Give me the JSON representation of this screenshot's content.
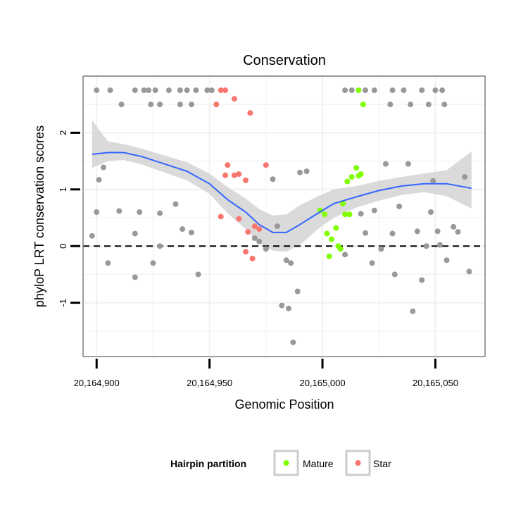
{
  "chart_data": {
    "type": "scatter",
    "title": "Conservation",
    "xlabel": "Genomic Position",
    "ylabel": "phyloP LRT conservation scores",
    "xlim": [
      20164894,
      20165072
    ],
    "ylim": [
      -1.95,
      3.0
    ],
    "x_ticks": [
      20164900,
      20164950,
      20165000,
      20165050
    ],
    "x_tick_labels": [
      "20,164,900",
      "20,164,950",
      "20,165,000",
      "20,165,050"
    ],
    "y_ticks": [
      -1,
      0,
      1,
      2
    ],
    "y_tick_labels": [
      "-1",
      "0",
      "1",
      "2"
    ],
    "reference_line": {
      "y": 0,
      "style": "dashed"
    },
    "legend": {
      "title": "Hairpin partition",
      "position": "bottom",
      "entries": [
        {
          "label": "Mature",
          "color": "#7fff00"
        },
        {
          "label": "Star",
          "color": "#f8766d"
        }
      ]
    },
    "colors": {
      "other": "#999999",
      "mature": "#7fff00",
      "star": "#f8766d",
      "smooth": "#3366ff",
      "band": "#d3d3d3"
    },
    "series": [
      {
        "name": "Other",
        "points": [
          [
            20164900,
            2.75
          ],
          [
            20164906,
            2.75
          ],
          [
            20164917,
            2.75
          ],
          [
            20164921,
            2.75
          ],
          [
            20164923,
            2.75
          ],
          [
            20164926,
            2.75
          ],
          [
            20164932,
            2.75
          ],
          [
            20164937,
            2.75
          ],
          [
            20164940,
            2.75
          ],
          [
            20164944,
            2.75
          ],
          [
            20164949,
            2.75
          ],
          [
            20164951,
            2.75
          ],
          [
            20164911,
            2.5
          ],
          [
            20164924,
            2.5
          ],
          [
            20164928,
            2.5
          ],
          [
            20164937,
            2.5
          ],
          [
            20164942,
            2.5
          ],
          [
            20164901,
            1.17
          ],
          [
            20164903,
            1.39
          ],
          [
            20164900,
            0.6
          ],
          [
            20164898,
            0.18
          ],
          [
            20164917,
            0.22
          ],
          [
            20164919,
            0.6
          ],
          [
            20164928,
            0.58
          ],
          [
            20164935,
            0.74
          ],
          [
            20164938,
            0.3
          ],
          [
            20164942,
            0.24
          ],
          [
            20164945,
            -0.5
          ],
          [
            20164928,
            0.0
          ],
          [
            20164917,
            -0.55
          ],
          [
            20164925,
            -0.3
          ],
          [
            20164905,
            -0.3
          ],
          [
            20164910,
            0.62
          ],
          [
            20164978,
            1.18
          ],
          [
            20164975,
            -0.05
          ],
          [
            20164980,
            0.35
          ],
          [
            20164984,
            -0.25
          ],
          [
            20164986,
            -0.3
          ],
          [
            20164989,
            -0.8
          ],
          [
            20164990,
            1.3
          ],
          [
            20164993,
            1.32
          ],
          [
            20164970,
            0.14
          ],
          [
            20164972,
            0.08
          ],
          [
            20164982,
            -1.05
          ],
          [
            20164985,
            -1.1
          ],
          [
            20164987,
            -1.7
          ],
          [
            20165010,
            2.75
          ],
          [
            20165013,
            2.75
          ],
          [
            20165019,
            2.75
          ],
          [
            20165023,
            2.75
          ],
          [
            20165031,
            2.75
          ],
          [
            20165036,
            2.75
          ],
          [
            20165044,
            2.75
          ],
          [
            20165050,
            2.75
          ],
          [
            20165053,
            2.75
          ],
          [
            20165030,
            2.5
          ],
          [
            20165039,
            2.5
          ],
          [
            20165047,
            2.5
          ],
          [
            20165054,
            2.5
          ],
          [
            20165010,
            -0.15
          ],
          [
            20165017,
            0.57
          ],
          [
            20165019,
            0.23
          ],
          [
            20165023,
            0.63
          ],
          [
            20165028,
            1.45
          ],
          [
            20165031,
            0.22
          ],
          [
            20165034,
            0.7
          ],
          [
            20165038,
            1.45
          ],
          [
            20165042,
            0.26
          ],
          [
            20165048,
            0.6
          ],
          [
            20165049,
            1.15
          ],
          [
            20165051,
            0.26
          ],
          [
            20165055,
            -0.25
          ],
          [
            20165058,
            0.34
          ],
          [
            20165060,
            0.25
          ],
          [
            20165063,
            1.22
          ],
          [
            20165065,
            -0.45
          ],
          [
            20165044,
            -0.6
          ],
          [
            20165040,
            -1.15
          ],
          [
            20165022,
            -0.3
          ],
          [
            20165026,
            -0.05
          ],
          [
            20165032,
            -0.5
          ],
          [
            20165046,
            0.0
          ],
          [
            20165052,
            0.02
          ]
        ]
      },
      {
        "name": "Mature",
        "points": [
          [
            20165016,
            2.75
          ],
          [
            20165018,
            2.5
          ],
          [
            20164999,
            0.63
          ],
          [
            20165001,
            0.56
          ],
          [
            20165004,
            0.12
          ],
          [
            20165006,
            0.32
          ],
          [
            20165009,
            0.75
          ],
          [
            20165012,
            0.56
          ],
          [
            20165016,
            1.24
          ],
          [
            20165013,
            1.22
          ],
          [
            20165015,
            1.38
          ],
          [
            20165003,
            -0.18
          ],
          [
            20165007,
            0.0
          ],
          [
            20165002,
            0.22
          ],
          [
            20165008,
            -0.05
          ],
          [
            20165010,
            0.56
          ],
          [
            20165017,
            1.27
          ],
          [
            20165011,
            1.14
          ]
        ]
      },
      {
        "name": "Star",
        "points": [
          [
            20164953,
            2.5
          ],
          [
            20164955,
            2.75
          ],
          [
            20164957,
            2.75
          ],
          [
            20164961,
            2.6
          ],
          [
            20164968,
            2.35
          ],
          [
            20164958,
            1.43
          ],
          [
            20164957,
            1.25
          ],
          [
            20164961,
            1.25
          ],
          [
            20164963,
            1.27
          ],
          [
            20164966,
            1.16
          ],
          [
            20164975,
            1.43
          ],
          [
            20164955,
            0.52
          ],
          [
            20164963,
            0.48
          ],
          [
            20164967,
            0.25
          ],
          [
            20164970,
            0.35
          ],
          [
            20164972,
            0.3
          ],
          [
            20164966,
            -0.1
          ],
          [
            20164969,
            -0.22
          ]
        ]
      }
    ],
    "smooth_curve": {
      "x": [
        20164898,
        20164905,
        20164912,
        20164920,
        20164930,
        20164940,
        20164950,
        20164958,
        20164966,
        20164972,
        20164978,
        20164984,
        20164990,
        20164998,
        20165005,
        20165015,
        20165025,
        20165035,
        20165045,
        20165055,
        20165066
      ],
      "y": [
        1.62,
        1.65,
        1.65,
        1.58,
        1.45,
        1.32,
        1.1,
        0.82,
        0.6,
        0.38,
        0.24,
        0.24,
        0.38,
        0.58,
        0.75,
        0.87,
        0.98,
        1.06,
        1.1,
        1.1,
        1.02
      ],
      "lower": [
        1.38,
        1.5,
        1.52,
        1.44,
        1.3,
        1.16,
        0.92,
        0.58,
        0.3,
        0.05,
        -0.08,
        -0.1,
        0.02,
        0.3,
        0.5,
        0.68,
        0.8,
        0.9,
        0.95,
        0.88,
        0.66
      ],
      "upper": [
        2.22,
        1.85,
        1.8,
        1.72,
        1.6,
        1.48,
        1.28,
        1.04,
        0.84,
        0.65,
        0.54,
        0.56,
        0.72,
        0.88,
        1.0,
        1.06,
        1.15,
        1.22,
        1.28,
        1.34,
        1.67
      ]
    }
  }
}
